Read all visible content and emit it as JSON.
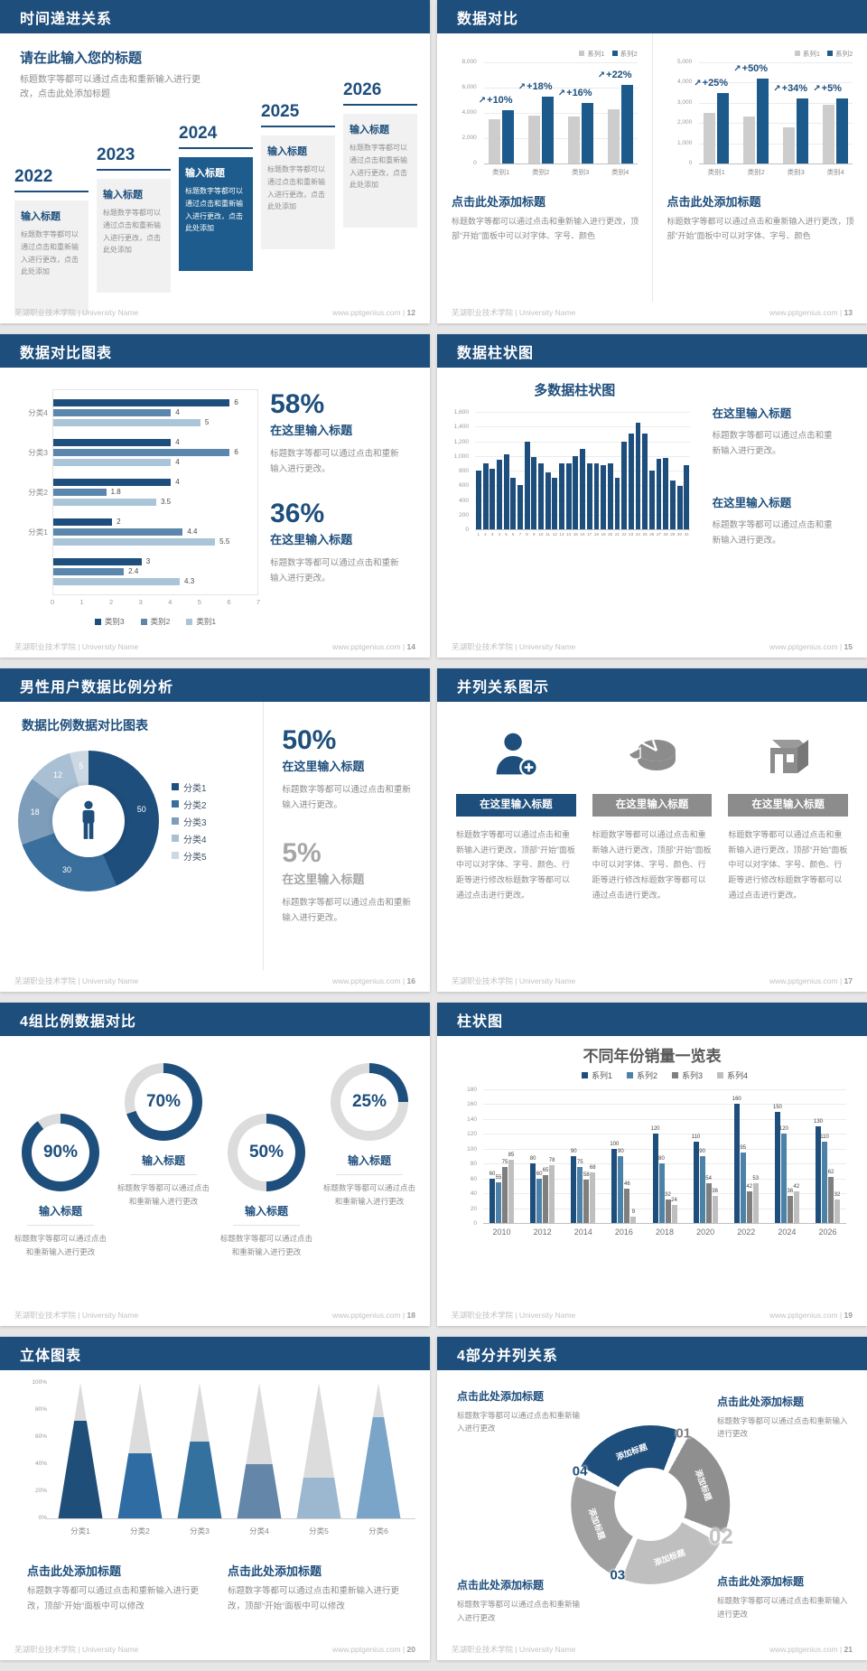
{
  "footer": {
    "left": "芜湖职业技术学院 | University Name",
    "site": "www.pptgenius.com",
    "sep": "|"
  },
  "accent_color": "#1e4e7c",
  "slides": [
    {
      "page": "12",
      "title": "时间递进关系",
      "heading": "请在此输入您的标题",
      "desc": "标题数字等都可以通过点击和重新输入进行更改，点击此处添加标题",
      "item_title": "输入标题",
      "item_body": "标题数字等都可以通过点击和重新输入进行更改，点击此处添加",
      "years": [
        "2022",
        "2023",
        "2024",
        "2025",
        "2026"
      ]
    },
    {
      "page": "13",
      "title": "数据对比",
      "arrow_icon": "↗",
      "charts": [
        {
          "type": "bar",
          "ymax": 8000,
          "yticks": [
            "8,000",
            "6,000",
            "4,000",
            "2,000",
            "0"
          ],
          "categories": [
            "类别1",
            "类别2",
            "类别3",
            "类别4"
          ],
          "series": [
            {
              "name": "系列1",
              "values": [
                3500,
                3800,
                3700,
                4300
              ]
            },
            {
              "name": "系列2",
              "values": [
                4200,
                5300,
                4800,
                6200
              ]
            }
          ],
          "deltas": [
            "+10%",
            "+18%",
            "+16%",
            "+22%"
          ]
        },
        {
          "type": "bar",
          "ymax": 5000,
          "yticks": [
            "5,000",
            "4,000",
            "3,000",
            "2,000",
            "1,000",
            "0"
          ],
          "categories": [
            "类别1",
            "类别2",
            "类别3",
            "类别4"
          ],
          "series": [
            {
              "name": "系列1",
              "values": [
                2500,
                2300,
                1800,
                2900
              ]
            },
            {
              "name": "系列2",
              "values": [
                3500,
                4200,
                3200,
                3200
              ]
            }
          ],
          "deltas": [
            "+25%",
            "+50%",
            "+34%",
            "+5%"
          ]
        }
      ],
      "blocks": [
        {
          "heading": "点击此处添加标题",
          "body": "标题数字等都可以通过点击和重新输入进行更改，顶部“开始”面板中可以对字体、字号、颜色"
        },
        {
          "heading": "点击此处添加标题",
          "body": "标题数字等都可以通过点击和重新输入进行更改，顶部“开始”面板中可以对字体、字号、颜色"
        }
      ]
    },
    {
      "page": "14",
      "title": "数据对比图表",
      "chart": {
        "type": "bar",
        "groups": [
          {
            "label": "分类4",
            "values": [
              6,
              4,
              5
            ]
          },
          {
            "label": "分类3",
            "values": [
              4,
              6,
              4
            ]
          },
          {
            "label": "分类2",
            "values": [
              4,
              1.8,
              3.5
            ]
          },
          {
            "label": "分类1",
            "values": [
              2,
              4.4,
              5.5
            ]
          },
          {
            "label": "",
            "values": [
              3,
              2.4,
              4.3
            ]
          }
        ],
        "xmax": 7,
        "xticks": [
          "0",
          "1",
          "2",
          "3",
          "4",
          "5",
          "6",
          "7"
        ],
        "legend": [
          {
            "label": "类别3",
            "color": "#1e4e7c"
          },
          {
            "label": "类别2",
            "color": "#5b87ad"
          },
          {
            "label": "类别1",
            "color": "#aac4d8"
          }
        ]
      },
      "stats": [
        {
          "pct": "58%",
          "label": "在这里输入标题",
          "body": "标题数字等都可以通过点击和重新输入进行更改。"
        },
        {
          "pct": "36%",
          "label": "在这里输入标题",
          "body": "标题数字等都可以通过点击和重新输入进行更改。"
        }
      ]
    },
    {
      "page": "15",
      "title": "数据柱状图",
      "chart_title": "多数据柱状图",
      "chart": {
        "type": "bar",
        "ymax": 1600,
        "yticks": [
          "1,600",
          "1,400",
          "1,200",
          "1,000",
          "800",
          "600",
          "400",
          "200",
          "0"
        ],
        "values": [
          800,
          900,
          820,
          950,
          1020,
          700,
          600,
          1200,
          990,
          900,
          780,
          700,
          900,
          900,
          1000,
          1100,
          900,
          900,
          880,
          900,
          700,
          1200,
          1300,
          1450,
          1300,
          800,
          960,
          970,
          660,
          590,
          870
        ],
        "xlabels": [
          "1",
          "2",
          "3",
          "4",
          "5",
          "6",
          "7",
          "8",
          "9",
          "10",
          "11",
          "12",
          "13",
          "14",
          "15",
          "16",
          "17",
          "18",
          "19",
          "20",
          "21",
          "22",
          "23",
          "24",
          "25",
          "26",
          "27",
          "28",
          "29",
          "30",
          "31"
        ]
      },
      "blocks": [
        {
          "label": "在这里输入标题",
          "body": "标题数字等都可以通过点击和重新输入进行更改。"
        },
        {
          "label": "在这里输入标题",
          "body": "标题数字等都可以通过点击和重新输入进行更改。"
        }
      ]
    },
    {
      "page": "16",
      "title": "男性用户数据比例分析",
      "chart_title": "数据比例数据对比图表",
      "donut": {
        "type": "pie",
        "values": [
          50,
          30,
          18,
          12,
          5
        ],
        "labels": [
          "分类1",
          "分类2",
          "分类3",
          "分类4",
          "分类5"
        ],
        "colors": [
          "#1e4e7c",
          "#3a6f9d",
          "#7e9dbb",
          "#a9c0d4",
          "#ccd8e3"
        ]
      },
      "stats": [
        {
          "pct": "50%",
          "label": "在这里输入标题",
          "body": "标题数字等都可以通过点击和重新输入进行更改。"
        },
        {
          "pct": "5%",
          "label": "在这里输入标题",
          "body": "标题数字等都可以通过点击和重新输入进行更改。"
        }
      ]
    },
    {
      "page": "17",
      "title": "并列关系图示",
      "cols": [
        {
          "icon": "person-add-icon",
          "heading": "在这里输入标题",
          "accent": true,
          "body": "标题数字等都可以通过点击和重新输入进行更改，顶部“开始”面板中可以对字体、字号、颜色、行距等进行修改标题数字等都可以通过点击进行更改。"
        },
        {
          "icon": "pie-icon",
          "heading": "在这里输入标题",
          "accent": false,
          "body": "标题数字等都可以通过点击和重新输入进行更改，顶部“开始”面板中可以对字体、字号、颜色、行距等进行修改标题数字等都可以通过点击进行更改。"
        },
        {
          "icon": "building-icon",
          "heading": "在这里输入标题",
          "accent": false,
          "body": "标题数字等都可以通过点击和重新输入进行更改，顶部“开始”面板中可以对字体、字号、颜色、行距等进行修改标题数字等都可以通过点击进行更改。"
        }
      ]
    },
    {
      "page": "18",
      "title": "4组比例数据对比",
      "rings": [
        {
          "pct": 90,
          "pct_label": "90%",
          "label": "输入标题",
          "body": "标题数字等都可以通过点击和重新输入进行更改"
        },
        {
          "pct": 70,
          "pct_label": "70%",
          "label": "输入标题",
          "body": "标题数字等都可以通过点击和重新输入进行更改"
        },
        {
          "pct": 50,
          "pct_label": "50%",
          "label": "输入标题",
          "body": "标题数字等都可以通过点击和重新输入进行更改"
        },
        {
          "pct": 25,
          "pct_label": "25%",
          "label": "输入标题",
          "body": "标题数字等都可以通过点击和重新输入进行更改"
        }
      ]
    },
    {
      "page": "19",
      "title": "柱状图",
      "chart_title": "不同年份销量一览表",
      "chart": {
        "type": "bar",
        "ymax": 180,
        "yticks": [
          "180",
          "160",
          "140",
          "120",
          "100",
          "80",
          "60",
          "40",
          "20",
          "0"
        ],
        "categories": [
          "2010",
          "2012",
          "2014",
          "2016",
          "2018",
          "2020",
          "2022",
          "2024",
          "2026"
        ],
        "legend": [
          {
            "label": "系列1",
            "color": "#1e4e7c"
          },
          {
            "label": "系列2",
            "color": "#4d82a8"
          },
          {
            "label": "系列3",
            "color": "#7f7f7f"
          },
          {
            "label": "系列4",
            "color": "#bfbfbf"
          }
        ],
        "series": [
          {
            "name": "系列1",
            "values": [
              60,
              80,
              90,
              100,
              120,
              110,
              160,
              150,
              130
            ]
          },
          {
            "name": "系列2",
            "values": [
              55,
              60,
              75,
              90,
              80,
              90,
              95,
              120,
              110
            ]
          },
          {
            "name": "系列3",
            "values": [
              75,
              65,
              58,
              46,
              32,
              54,
              42,
              36,
              62
            ]
          },
          {
            "name": "系列4",
            "values": [
              85,
              78,
              68,
              9,
              24,
              36,
              53,
              42,
              32
            ]
          }
        ]
      }
    },
    {
      "page": "20",
      "title": "立体图表",
      "chart": {
        "type": "bar",
        "categories": [
          "分类1",
          "分类2",
          "分类3",
          "分类4",
          "分类5",
          "分类6"
        ],
        "fill_pct": [
          72,
          48,
          57,
          40,
          30,
          75
        ],
        "colors": [
          "#1f4e79",
          "#2e6ca3",
          "#35719f",
          "#6486a8",
          "#9cb8d0",
          "#7aa5c9"
        ],
        "yticks": [
          "100%",
          "80%",
          "60%",
          "40%",
          "20%",
          "0%"
        ]
      },
      "blocks": [
        {
          "heading": "点击此处添加标题",
          "body": "标题数字等都可以通过点击和重新输入进行更改，顶部“开始”面板中可以修改"
        },
        {
          "heading": "点击此处添加标题",
          "body": "标题数字等都可以通过点击和重新输入进行更改，顶部“开始”面板中可以修改"
        }
      ]
    },
    {
      "page": "21",
      "title": "4部分并列关系",
      "wheel": {
        "segments": [
          {
            "num": "01",
            "label": "添加标题",
            "color": "#8f8f8f",
            "num_color": "#7f7f7f"
          },
          {
            "num": "02",
            "label": "添加标题",
            "color": "#bfbfbf",
            "num_color": "#c3c3c3"
          },
          {
            "num": "03",
            "label": "添加标题",
            "color": "#a0a0a0",
            "num_color": "#1e4e7c"
          },
          {
            "num": "04",
            "label": "添加标题",
            "color": "#1e4e7c",
            "num_color": "#1e4e7c"
          }
        ]
      },
      "corners": [
        {
          "heading": "点击此处添加标题",
          "body": "标题数字等都可以通过点击和重新输入进行更改"
        },
        {
          "heading": "点击此处添加标题",
          "body": "标题数字等都可以通过点击和重新输入进行更改"
        },
        {
          "heading": "点击此处添加标题",
          "body": "标题数字等都可以通过点击和重新输入进行更改"
        },
        {
          "heading": "点击此处添加标题",
          "body": "标题数字等都可以通过点击和重新输入进行更改"
        }
      ]
    }
  ]
}
